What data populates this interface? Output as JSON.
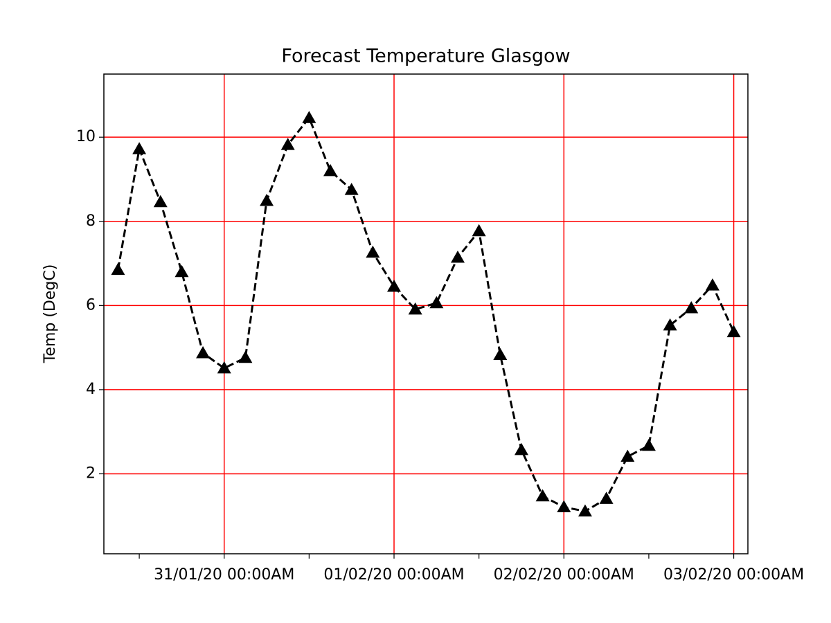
{
  "chart_data": {
    "type": "line",
    "title": "Forecast Temperature Glasgow",
    "y_label": "Temp (DegC)",
    "x": [
      "30/01/20 09:00AM",
      "30/01/20 12:00PM",
      "30/01/20 15:00PM",
      "30/01/20 18:00PM",
      "30/01/20 21:00PM",
      "31/01/20 00:00AM",
      "31/01/20 03:00AM",
      "31/01/20 06:00AM",
      "31/01/20 09:00AM",
      "31/01/20 12:00PM",
      "31/01/20 15:00PM",
      "31/01/20 18:00PM",
      "31/01/20 21:00PM",
      "01/02/20 00:00AM",
      "01/02/20 03:00AM",
      "01/02/20 06:00AM",
      "01/02/20 09:00AM",
      "01/02/20 12:00PM",
      "01/02/20 15:00PM",
      "01/02/20 18:00PM",
      "01/02/20 21:00PM",
      "02/02/20 00:00AM",
      "02/02/20 03:00AM",
      "02/02/20 06:00AM",
      "02/02/20 09:00AM",
      "02/02/20 12:00PM",
      "02/02/20 15:00PM",
      "02/02/20 18:00PM",
      "02/02/20 21:00PM",
      "03/02/20 00:00AM"
    ],
    "series": [
      {
        "color": "#000000",
        "marker": "triangle",
        "line_style": "dashed",
        "values": [
          6.85,
          9.72,
          8.46,
          6.8,
          4.87,
          4.51,
          4.76,
          8.49,
          9.82,
          10.46,
          9.2,
          8.75,
          7.26,
          6.45,
          5.91,
          6.06,
          7.14,
          7.77,
          4.83,
          2.57,
          1.47,
          1.21,
          1.11,
          1.41,
          2.41,
          2.67,
          5.53,
          5.94,
          6.48,
          5.37
        ]
      }
    ],
    "xlim": [
      "30/01/20 07:00AM",
      "03/02/20 02:00AM"
    ],
    "xticks": [
      {
        "value": "30/01/20 12:00PM",
        "label": null
      },
      "31/01/20 00:00AM",
      {
        "value": "31/01/20 12:00PM",
        "label": null
      },
      "01/02/20 00:00AM",
      {
        "value": "01/02/20 12:00PM",
        "label": null
      },
      "02/02/20 00:00AM",
      {
        "value": "02/02/20 12:00PM",
        "label": null
      },
      "03/02/20 00:00AM"
    ],
    "ylim": [
      0.1,
      11.5
    ],
    "yticks": [
      2,
      4,
      6,
      8,
      10
    ],
    "grid": true,
    "grid_color": "#ff0000"
  }
}
